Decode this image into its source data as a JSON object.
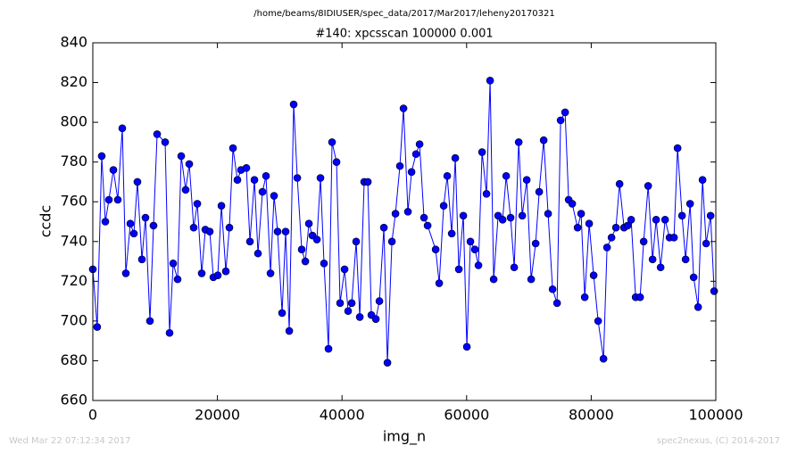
{
  "chart_data": {
    "type": "line",
    "title": "/home/beams/8IDIUSER/spec_data/2017/Mar2017/leheny20170321",
    "subtitle": "#140: xpcsscan 100000 0.001",
    "xlabel": "img_n",
    "ylabel": "ccdc",
    "annotations": [
      "Wed Mar 22 07:12:34 2017",
      "spec2nexus, (C) 2014-2017"
    ],
    "color": "#0000ff",
    "marker": "o",
    "xlim": [
      0,
      100000
    ],
    "xticks": [
      0,
      20000,
      40000,
      60000,
      80000,
      100000
    ],
    "ylim": [
      660,
      840
    ],
    "yticks": [
      660,
      680,
      700,
      720,
      740,
      760,
      780,
      800,
      820,
      840
    ],
    "x": [
      0,
      700,
      1430,
      2010,
      2580,
      3300,
      4010,
      4730,
      5300,
      6020,
      6590,
      7160,
      7880,
      8450,
      9170,
      9740,
      10320,
      11610,
      12320,
      12900,
      13610,
      14190,
      14900,
      15480,
      16190,
      16770,
      17480,
      18060,
      18770,
      19350,
      20060,
      20640,
      21350,
      21920,
      22500,
      23210,
      23790,
      24650,
      25220,
      25940,
      26510,
      27230,
      27800,
      28520,
      29090,
      29660,
      30380,
      30950,
      31530,
      32240,
      32820,
      33530,
      34110,
      34680,
      35250,
      35970,
      36540,
      37110,
      37830,
      38400,
      39120,
      39690,
      40410,
      40980,
      41560,
      42270,
      42850,
      43560,
      44140,
      44710,
      45430,
      46000,
      46720,
      47290,
      48010,
      48580,
      49290,
      49870,
      50580,
      51160,
      51870,
      52450,
      53160,
      53740,
      55030,
      55600,
      56320,
      56890,
      57610,
      58180,
      58750,
      59470,
      60040,
      60610,
      61330,
      61900,
      62480,
      63190,
      63770,
      64340,
      65060,
      65780,
      66350,
      67060,
      67640,
      68360,
      68930,
      69650,
      70360,
      71080,
      71650,
      72370,
      73080,
      73800,
      74520,
      75090,
      75810,
      76380,
      76950,
      77810,
      78380,
      78960,
      79670,
      80390,
      81110,
      81970,
      82540,
      83260,
      83970,
      84550,
      85270,
      85840,
      86410,
      87130,
      87850,
      88420,
      89140,
      89850,
      90420,
      91140,
      91860,
      92570,
      93290,
      93860,
      94580,
      95150,
      95870,
      96440,
      97160,
      97870,
      98450,
      99160,
      99730
    ],
    "values": [
      726,
      697,
      783,
      750,
      761,
      776,
      761,
      797,
      724,
      749,
      744,
      770,
      731,
      752,
      700,
      748,
      794,
      790,
      694,
      729,
      721,
      783,
      766,
      779,
      747,
      759,
      724,
      746,
      745,
      722,
      723,
      758,
      725,
      747,
      787,
      771,
      776,
      777,
      740,
      771,
      734,
      765,
      773,
      724,
      763,
      745,
      704,
      745,
      695,
      809,
      772,
      736,
      730,
      749,
      743,
      741,
      772,
      729,
      686,
      790,
      780,
      709,
      726,
      705,
      709,
      740,
      702,
      770,
      770,
      703,
      701,
      710,
      747,
      679,
      740,
      754,
      778,
      807,
      755,
      775,
      784,
      789,
      752,
      748,
      736,
      719,
      758,
      773,
      744,
      782,
      726,
      753,
      687,
      740,
      736,
      728,
      785,
      764,
      821,
      721,
      753,
      751,
      773,
      752,
      727,
      790,
      753,
      771,
      721,
      739,
      765,
      791,
      754,
      716,
      709,
      801,
      805,
      761,
      759,
      747,
      754,
      712,
      749,
      723,
      700,
      681,
      737,
      742,
      747,
      769,
      747,
      748,
      751,
      712,
      712,
      740,
      768,
      731,
      751,
      727,
      751,
      742,
      742,
      787,
      753,
      731,
      759,
      722,
      707,
      771,
      739,
      753,
      715
    ]
  }
}
